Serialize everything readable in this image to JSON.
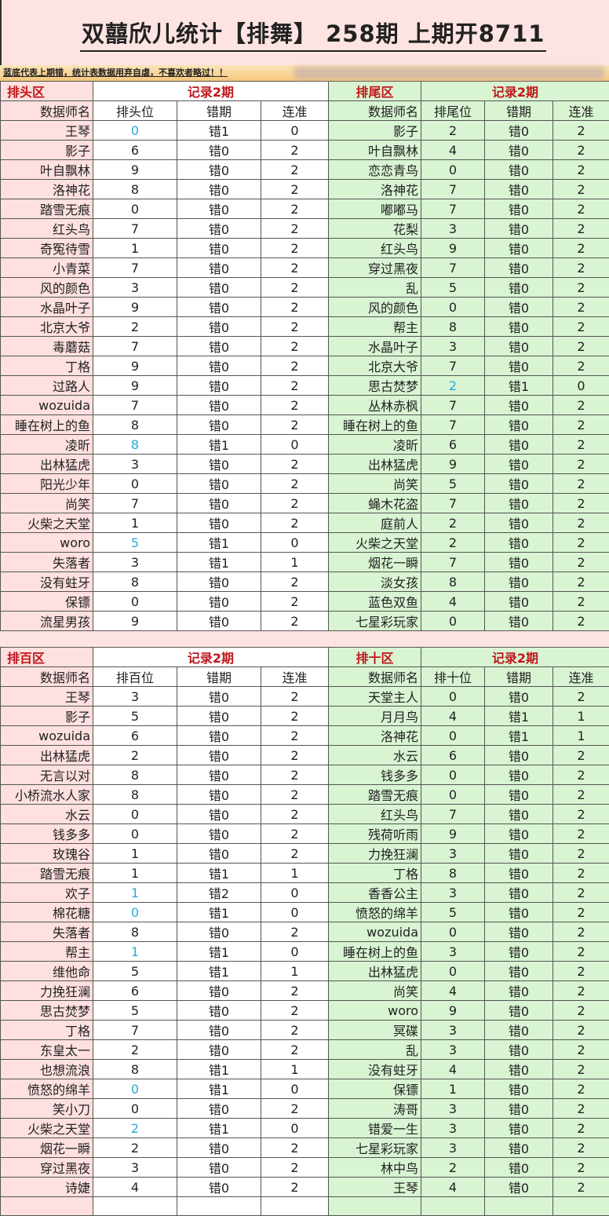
{
  "title": "双囍欣儿统计【排舞】  258期  上期开8711",
  "notice": "蓝底代表上期错，统计表数据用弃自虐，不喜欢者略过！！",
  "colors": {
    "pink": "#fde0df",
    "green": "#d8f4d2",
    "highlight": "#29a9d6",
    "section": "#c0161b"
  },
  "sections": [
    {
      "left": {
        "zone": "排头区",
        "record": "记录2期",
        "headers": [
          "数据师名",
          "排头位",
          "错期",
          "连准"
        ],
        "rows": [
          [
            "王琴",
            "0",
            "错1",
            "0",
            true
          ],
          [
            "影子",
            "6",
            "错0",
            "2"
          ],
          [
            "叶自飘林",
            "9",
            "错0",
            "2"
          ],
          [
            "洛神花",
            "8",
            "错0",
            "2"
          ],
          [
            "踏雪无痕",
            "0",
            "错0",
            "2"
          ],
          [
            "红头鸟",
            "7",
            "错0",
            "2"
          ],
          [
            "奇冤待雪",
            "1",
            "错0",
            "2"
          ],
          [
            "小青菜",
            "7",
            "错0",
            "2"
          ],
          [
            "风的颜色",
            "3",
            "错0",
            "2"
          ],
          [
            "水晶叶子",
            "9",
            "错0",
            "2"
          ],
          [
            "北京大爷",
            "2",
            "错0",
            "2"
          ],
          [
            "毒蘑菇",
            "7",
            "错0",
            "2"
          ],
          [
            "丁格",
            "9",
            "错0",
            "2"
          ],
          [
            "过路人",
            "9",
            "错0",
            "2"
          ],
          [
            "wozuida",
            "7",
            "错0",
            "2"
          ],
          [
            "睡在树上的鱼",
            "8",
            "错0",
            "2"
          ],
          [
            "凌昕",
            "8",
            "错1",
            "0",
            true
          ],
          [
            "出林猛虎",
            "3",
            "错0",
            "2"
          ],
          [
            "阳光少年",
            "0",
            "错0",
            "2"
          ],
          [
            "尚笑",
            "7",
            "错0",
            "2"
          ],
          [
            "火柴之天堂",
            "1",
            "错0",
            "2"
          ],
          [
            "woro",
            "5",
            "错1",
            "0",
            true
          ],
          [
            "失落者",
            "3",
            "错1",
            "1"
          ],
          [
            "没有蛀牙",
            "8",
            "错0",
            "2"
          ],
          [
            "保镖",
            "0",
            "错0",
            "2"
          ],
          [
            "流星男孩",
            "9",
            "错0",
            "2"
          ]
        ]
      },
      "right": {
        "zone": "排尾区",
        "record": "记录2期",
        "headers": [
          "数据师名",
          "排尾位",
          "错期",
          "连准"
        ],
        "rows": [
          [
            "影子",
            "2",
            "错0",
            "2"
          ],
          [
            "叶自飘林",
            "4",
            "错0",
            "2"
          ],
          [
            "恋恋青鸟",
            "0",
            "错0",
            "2"
          ],
          [
            "洛神花",
            "7",
            "错0",
            "2"
          ],
          [
            "嘟嘟马",
            "7",
            "错0",
            "2"
          ],
          [
            "花梨",
            "3",
            "错0",
            "2"
          ],
          [
            "红头鸟",
            "9",
            "错0",
            "2"
          ],
          [
            "穿过黑夜",
            "7",
            "错0",
            "2"
          ],
          [
            "乱",
            "5",
            "错0",
            "2"
          ],
          [
            "风的颜色",
            "0",
            "错0",
            "2"
          ],
          [
            "帮主",
            "8",
            "错0",
            "2"
          ],
          [
            "水晶叶子",
            "3",
            "错0",
            "2"
          ],
          [
            "北京大爷",
            "7",
            "错0",
            "2"
          ],
          [
            "思古焚梦",
            "2",
            "错1",
            "0",
            true
          ],
          [
            "丛林赤枫",
            "7",
            "错0",
            "2"
          ],
          [
            "睡在树上的鱼",
            "7",
            "错0",
            "2"
          ],
          [
            "凌昕",
            "6",
            "错0",
            "2"
          ],
          [
            "出林猛虎",
            "9",
            "错0",
            "2"
          ],
          [
            "尚笑",
            "5",
            "错0",
            "2"
          ],
          [
            "蝇木花盗",
            "7",
            "错0",
            "2"
          ],
          [
            "庭前人",
            "2",
            "错0",
            "2"
          ],
          [
            "火柴之天堂",
            "2",
            "错0",
            "2"
          ],
          [
            "烟花一瞬",
            "7",
            "错0",
            "2"
          ],
          [
            "淡女孩",
            "8",
            "错0",
            "2"
          ],
          [
            "蓝色双鱼",
            "4",
            "错0",
            "2"
          ],
          [
            "七星彩玩家",
            "0",
            "错0",
            "2"
          ]
        ]
      }
    },
    {
      "left": {
        "zone": "排百区",
        "record": "记录2期",
        "headers": [
          "数据师名",
          "排百位",
          "错期",
          "连准"
        ],
        "rows": [
          [
            "王琴",
            "3",
            "错0",
            "2"
          ],
          [
            "影子",
            "5",
            "错0",
            "2"
          ],
          [
            "wozuida",
            "6",
            "错0",
            "2"
          ],
          [
            "出林猛虎",
            "2",
            "错0",
            "2"
          ],
          [
            "无言以对",
            "8",
            "错0",
            "2"
          ],
          [
            "小桥流水人家",
            "8",
            "错0",
            "2"
          ],
          [
            "水云",
            "0",
            "错0",
            "2"
          ],
          [
            "钱多多",
            "0",
            "错0",
            "2"
          ],
          [
            "玫瑰谷",
            "1",
            "错0",
            "2"
          ],
          [
            "踏雪无痕",
            "1",
            "错1",
            "1"
          ],
          [
            "欢子",
            "1",
            "错2",
            "0",
            true
          ],
          [
            "棉花糖",
            "0",
            "错1",
            "0",
            true
          ],
          [
            "失落者",
            "8",
            "错0",
            "2"
          ],
          [
            "帮主",
            "1",
            "错1",
            "0",
            true
          ],
          [
            "维他命",
            "5",
            "错1",
            "1"
          ],
          [
            "力挽狂澜",
            "6",
            "错0",
            "2"
          ],
          [
            "思古焚梦",
            "5",
            "错0",
            "2"
          ],
          [
            "丁格",
            "7",
            "错0",
            "2"
          ],
          [
            "东皇太一",
            "2",
            "错0",
            "2"
          ],
          [
            "也想流浪",
            "8",
            "错1",
            "1"
          ],
          [
            "愤怒的绵羊",
            "0",
            "错1",
            "0",
            true
          ],
          [
            "笑小刀",
            "0",
            "错0",
            "2"
          ],
          [
            "火柴之天堂",
            "2",
            "错1",
            "0",
            true
          ],
          [
            "烟花一瞬",
            "2",
            "错0",
            "2"
          ],
          [
            "穿过黑夜",
            "3",
            "错0",
            "2"
          ],
          [
            "诗婕",
            "4",
            "错0",
            "2"
          ]
        ]
      },
      "right": {
        "zone": "排十区",
        "record": "记录2期",
        "headers": [
          "数据师名",
          "排十位",
          "错期",
          "连准"
        ],
        "rows": [
          [
            "天堂主人",
            "0",
            "错0",
            "2"
          ],
          [
            "月月鸟",
            "4",
            "错1",
            "1"
          ],
          [
            "洛神花",
            "0",
            "错1",
            "1"
          ],
          [
            "水云",
            "6",
            "错0",
            "2"
          ],
          [
            "钱多多",
            "0",
            "错0",
            "2"
          ],
          [
            "踏雪无痕",
            "0",
            "错0",
            "2"
          ],
          [
            "红头鸟",
            "7",
            "错0",
            "2"
          ],
          [
            "残荷听雨",
            "9",
            "错0",
            "2"
          ],
          [
            "力挽狂澜",
            "3",
            "错0",
            "2"
          ],
          [
            "丁格",
            "8",
            "错0",
            "2"
          ],
          [
            "香香公主",
            "3",
            "错0",
            "2"
          ],
          [
            "愤怒的绵羊",
            "5",
            "错0",
            "2"
          ],
          [
            "wozuida",
            "0",
            "错0",
            "2"
          ],
          [
            "睡在树上的鱼",
            "3",
            "错0",
            "2"
          ],
          [
            "出林猛虎",
            "0",
            "错0",
            "2"
          ],
          [
            "尚笑",
            "4",
            "错0",
            "2"
          ],
          [
            "woro",
            "9",
            "错0",
            "2"
          ],
          [
            "冥碟",
            "3",
            "错0",
            "2"
          ],
          [
            "乱",
            "3",
            "错0",
            "2"
          ],
          [
            "没有蛀牙",
            "4",
            "错0",
            "2"
          ],
          [
            "保镖",
            "1",
            "错0",
            "2"
          ],
          [
            "涛哥",
            "3",
            "错0",
            "2"
          ],
          [
            "错爱一生",
            "3",
            "错0",
            "2"
          ],
          [
            "七星彩玩家",
            "3",
            "错0",
            "2"
          ],
          [
            "林中鸟",
            "2",
            "错0",
            "2"
          ],
          [
            "王琴",
            "4",
            "错0",
            "2"
          ]
        ]
      }
    }
  ]
}
